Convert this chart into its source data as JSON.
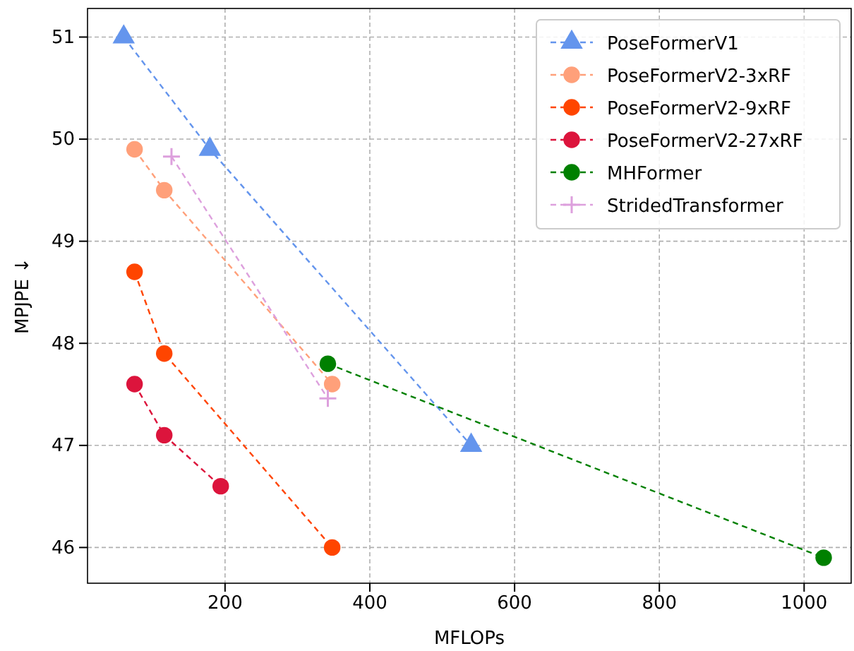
{
  "chart_data": {
    "type": "line",
    "xlabel": "MFLOPs",
    "ylabel": "MPJPE ↓",
    "xlim": [
      10,
      1065
    ],
    "ylim": [
      45.65,
      51.28
    ],
    "xticks": [
      200,
      400,
      600,
      800,
      1000
    ],
    "yticks": [
      46,
      47,
      48,
      49,
      50,
      51
    ],
    "grid": true,
    "legend": "top right",
    "line_style": "dashed",
    "series": [
      {
        "name": "PoseFormerV1",
        "color": "#6495ed",
        "marker": "triangle",
        "x": [
          60,
          179,
          540
        ],
        "values": [
          51.0,
          49.9,
          47.0
        ]
      },
      {
        "name": "PoseFormerV2-3xRF",
        "color": "#ffa07a",
        "marker": "circle",
        "x": [
          75,
          116,
          348
        ],
        "values": [
          49.9,
          49.5,
          47.6
        ]
      },
      {
        "name": "PoseFormerV2-9xRF",
        "color": "#ff4500",
        "marker": "circle",
        "x": [
          75,
          116,
          348
        ],
        "values": [
          48.7,
          47.9,
          46.0
        ]
      },
      {
        "name": "PoseFormerV2-27xRF",
        "color": "#dc143c",
        "marker": "circle",
        "x": [
          75,
          116,
          194
        ],
        "values": [
          47.6,
          47.1,
          46.6
        ]
      },
      {
        "name": "MHFormer",
        "color": "#008000",
        "marker": "circle",
        "x": [
          342,
          1027
        ],
        "values": [
          47.8,
          45.9
        ]
      },
      {
        "name": "StridedTransformer",
        "color": "#dda0dd",
        "marker": "cross",
        "x": [
          126,
          342
        ],
        "values": [
          49.83,
          47.46
        ]
      }
    ]
  }
}
